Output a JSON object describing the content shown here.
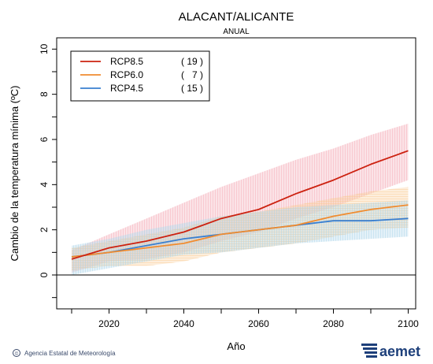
{
  "chart_data": {
    "type": "line",
    "title": "ALACANT/ALICANTE",
    "subtitle": "ANUAL",
    "xlabel": "Año",
    "ylabel": "Cambio de la temperatura mínima (ºC)",
    "xlim": [
      2006,
      2102
    ],
    "ylim": [
      -1.5,
      10.5
    ],
    "x_ticks": [
      2020,
      2040,
      2060,
      2080,
      2100
    ],
    "y_ticks": [
      0,
      2,
      4,
      6,
      8,
      10
    ],
    "reference_line": 0,
    "legend_placement": "top-left",
    "series": [
      {
        "name": "RCP8.5",
        "count": "( 19 )",
        "color": "#cc2211",
        "band_color": "#f4a6b0",
        "x": [
          2010,
          2020,
          2030,
          2040,
          2050,
          2060,
          2070,
          2080,
          2090,
          2100
        ],
        "values": [
          0.7,
          1.2,
          1.5,
          1.9,
          2.5,
          2.9,
          3.6,
          4.2,
          4.9,
          5.5
        ],
        "lower": [
          0.1,
          0.6,
          0.7,
          1.0,
          1.5,
          1.9,
          2.5,
          3.0,
          3.6,
          4.2
        ],
        "upper": [
          1.1,
          1.8,
          2.5,
          3.2,
          3.9,
          4.5,
          5.1,
          5.6,
          6.2,
          6.7
        ]
      },
      {
        "name": "RCP6.0",
        "count": "(   7 )",
        "color": "#f08c30",
        "band_color": "#f9c98f",
        "x": [
          2010,
          2020,
          2030,
          2040,
          2050,
          2060,
          2070,
          2080,
          2090,
          2100
        ],
        "values": [
          0.8,
          1.0,
          1.2,
          1.4,
          1.8,
          2.0,
          2.2,
          2.6,
          2.9,
          3.1
        ],
        "lower": [
          0.2,
          0.4,
          0.4,
          0.6,
          1.0,
          1.2,
          1.4,
          1.7,
          2.0,
          2.1
        ],
        "upper": [
          1.2,
          1.5,
          1.8,
          2.1,
          2.6,
          2.8,
          3.1,
          3.4,
          3.7,
          3.9
        ]
      },
      {
        "name": "RCP4.5",
        "count": "( 15 )",
        "color": "#3a7fd0",
        "band_color": "#a9d4e8",
        "x": [
          2010,
          2020,
          2030,
          2040,
          2050,
          2060,
          2070,
          2080,
          2090,
          2100
        ],
        "values": [
          0.8,
          1.0,
          1.3,
          1.6,
          1.8,
          2.0,
          2.2,
          2.4,
          2.4,
          2.5
        ],
        "lower": [
          0.0,
          0.3,
          0.6,
          0.9,
          1.0,
          1.2,
          1.4,
          1.5,
          1.6,
          1.7
        ],
        "upper": [
          1.3,
          1.6,
          2.0,
          2.3,
          2.6,
          2.8,
          3.0,
          3.1,
          3.2,
          3.3
        ]
      }
    ]
  },
  "footer": {
    "agency": "Agencia Estatal de Meteorología",
    "copyright_symbol": "©",
    "logo_text": "aemet"
  }
}
